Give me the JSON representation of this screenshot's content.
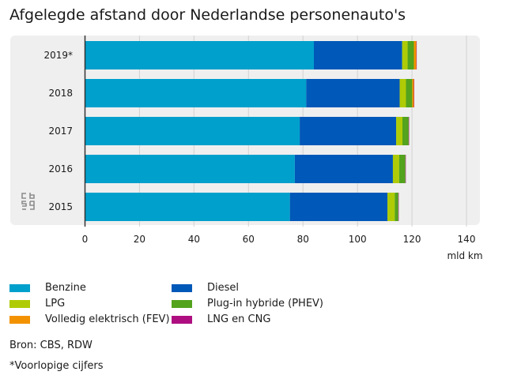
{
  "chart_data": {
    "type": "bar",
    "orientation": "horizontal",
    "stacked": true,
    "title": "Afgelegde afstand door Nederlandse personenauto's",
    "xlabel": "mld km",
    "xlim": [
      0,
      140
    ],
    "xticks": [
      "0",
      "20",
      "40",
      "60",
      "80",
      "100",
      "120",
      "140"
    ],
    "grid": true,
    "legend_position": "bottom",
    "categories": [
      "2019*",
      "2018",
      "2017",
      "2016",
      "2015"
    ],
    "series": [
      {
        "name": "Benzine",
        "color": "#00a0cc",
        "values": [
          84.0,
          81.2,
          78.8,
          77.0,
          75.2
        ]
      },
      {
        "name": "Diesel",
        "color": "#0058b8",
        "values": [
          32.4,
          34.3,
          35.4,
          36.0,
          35.8
        ]
      },
      {
        "name": "LPG",
        "color": "#afcb05",
        "values": [
          2.0,
          2.3,
          2.3,
          2.3,
          2.7
        ]
      },
      {
        "name": "Plug-in hybride (PHEV)",
        "color": "#53a31d",
        "values": [
          2.3,
          2.3,
          2.3,
          2.3,
          1.3
        ]
      },
      {
        "name": "Volledig elektrisch (FEV)",
        "color": "#f39200",
        "values": [
          0.9,
          0.6,
          0.0,
          0.0,
          0.0
        ]
      },
      {
        "name": "LNG en CNG",
        "color": "#af0e80",
        "values": [
          0.1,
          0.1,
          0.1,
          0.1,
          0.1
        ]
      }
    ]
  },
  "legend": {
    "items": [
      {
        "label": "Benzine",
        "color": "#00a0cc"
      },
      {
        "label": "Diesel",
        "color": "#0058b8"
      },
      {
        "label": "LPG",
        "color": "#afcb05"
      },
      {
        "label": "Plug-in hybride (PHEV)",
        "color": "#53a31d"
      },
      {
        "label": "Volledig elektrisch (FEV)",
        "color": "#f39200"
      },
      {
        "label": "LNG en CNG",
        "color": "#af0e80"
      }
    ]
  },
  "source_note": "Bron: CBS, RDW",
  "footnote": "*Voorlopige cijfers",
  "logo": {
    "name": "cbs-logo-icon",
    "text": "cbs"
  }
}
